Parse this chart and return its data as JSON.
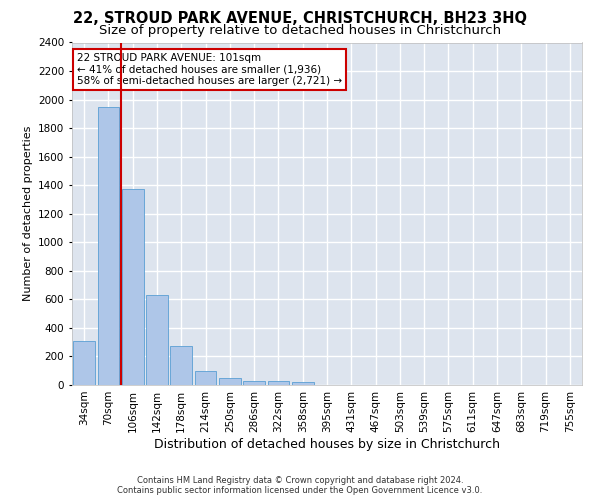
{
  "title": "22, STROUD PARK AVENUE, CHRISTCHURCH, BH23 3HQ",
  "subtitle": "Size of property relative to detached houses in Christchurch",
  "xlabel": "Distribution of detached houses by size in Christchurch",
  "ylabel": "Number of detached properties",
  "categories": [
    "34sqm",
    "70sqm",
    "106sqm",
    "142sqm",
    "178sqm",
    "214sqm",
    "250sqm",
    "286sqm",
    "322sqm",
    "358sqm",
    "395sqm",
    "431sqm",
    "467sqm",
    "503sqm",
    "539sqm",
    "575sqm",
    "611sqm",
    "647sqm",
    "683sqm",
    "719sqm",
    "755sqm"
  ],
  "values": [
    310,
    1950,
    1370,
    630,
    270,
    100,
    50,
    30,
    25,
    20,
    0,
    0,
    0,
    0,
    0,
    0,
    0,
    0,
    0,
    0,
    0
  ],
  "bar_color": "#aec6e8",
  "bar_edge_color": "#5a9fd4",
  "red_line_x": 1.5,
  "annotation_text": "22 STROUD PARK AVENUE: 101sqm\n← 41% of detached houses are smaller (1,936)\n58% of semi-detached houses are larger (2,721) →",
  "annotation_box_color": "#ffffff",
  "annotation_box_edge_color": "#cc0000",
  "red_line_color": "#cc0000",
  "ylim": [
    0,
    2400
  ],
  "yticks": [
    0,
    200,
    400,
    600,
    800,
    1000,
    1200,
    1400,
    1600,
    1800,
    2000,
    2200,
    2400
  ],
  "background_color": "#dde4ee",
  "grid_color": "#ffffff",
  "footer_line1": "Contains HM Land Registry data © Crown copyright and database right 2024.",
  "footer_line2": "Contains public sector information licensed under the Open Government Licence v3.0.",
  "title_fontsize": 10.5,
  "subtitle_fontsize": 9.5,
  "ylabel_fontsize": 8,
  "xlabel_fontsize": 9,
  "tick_fontsize": 7.5,
  "annotation_fontsize": 7.5
}
